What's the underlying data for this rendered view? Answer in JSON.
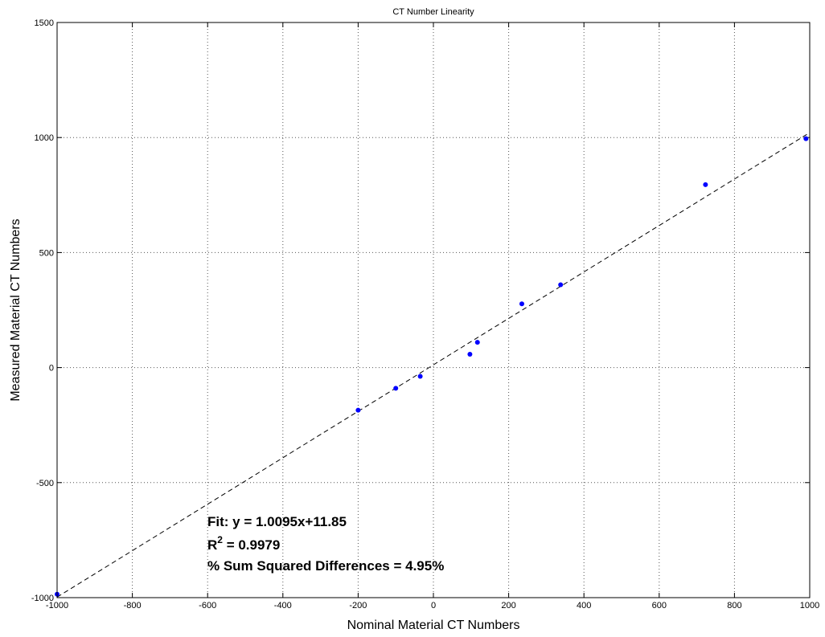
{
  "chart_data": {
    "type": "scatter",
    "title": "CT Number Linearity",
    "xlabel": "Nominal Material CT Numbers",
    "ylabel": "Measured Material CT Numbers",
    "xlim": [
      -1000,
      1000
    ],
    "ylim": [
      -1000,
      1500
    ],
    "xticks": [
      -1000,
      -800,
      -600,
      -400,
      -200,
      0,
      200,
      400,
      600,
      800,
      1000
    ],
    "yticks": [
      -1000,
      -500,
      0,
      500,
      1000,
      1500
    ],
    "grid": true,
    "colors": {
      "points": "#0000ff",
      "fit_line": "#000000"
    },
    "points": [
      {
        "x": -1000,
        "y": -985
      },
      {
        "x": -200,
        "y": -185
      },
      {
        "x": -100,
        "y": -90
      },
      {
        "x": -35,
        "y": -38
      },
      {
        "x": 97,
        "y": 58
      },
      {
        "x": 117,
        "y": 110
      },
      {
        "x": 235,
        "y": 277
      },
      {
        "x": 338,
        "y": 360
      },
      {
        "x": 723,
        "y": 795
      },
      {
        "x": 990,
        "y": 995
      }
    ],
    "fit": {
      "slope": 1.0095,
      "intercept": 11.85,
      "style": "dashed"
    },
    "annotations": {
      "fit_line": "Fit: y = 1.0095x+11.85",
      "r2_prefix": "R",
      "r2_sup": "2",
      "r2_value": " = 0.9979",
      "ssd_line": "% Sum Squared Differences = 4.95%"
    }
  }
}
